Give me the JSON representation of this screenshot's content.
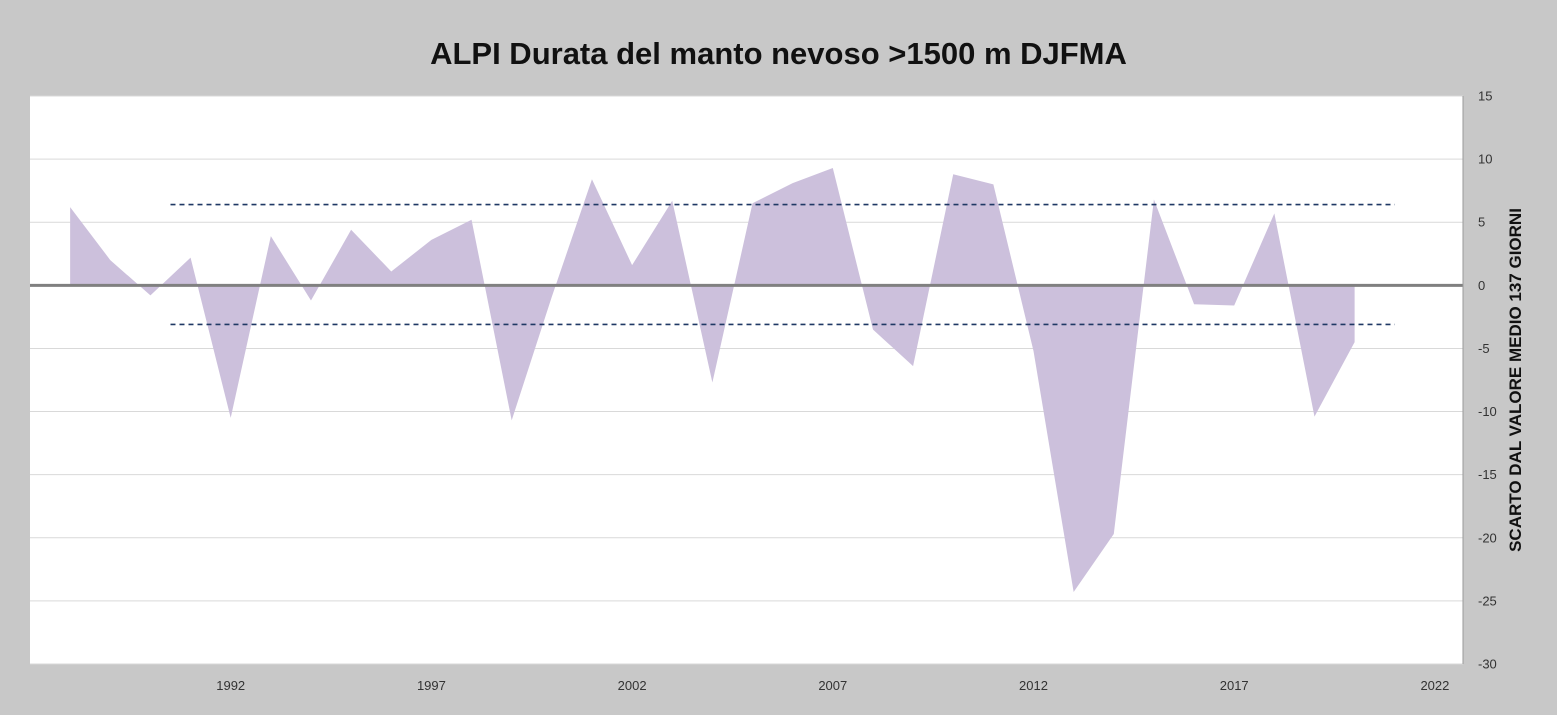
{
  "chart_data": {
    "type": "area",
    "title": "ALPI Durata del manto nevoso >1500 m DJFMA",
    "xlabel": "",
    "ylabel": "SCARTO DAL VALORE MEDIO  137  GIORNI",
    "y_axis_side": "right",
    "ylim": [
      -30,
      15
    ],
    "yticks": [
      15,
      10,
      5,
      0,
      -5,
      -10,
      -15,
      -20,
      -25,
      -30
    ],
    "xlim": [
      1987,
      2022.7
    ],
    "xticks": [
      1992,
      1997,
      2002,
      2007,
      2012,
      2017,
      2022
    ],
    "grid": true,
    "series": [
      {
        "name": "scarto",
        "color": "#ccc0dc",
        "x": [
          1988,
          1989,
          1990,
          1991,
          1992,
          1993,
          1994,
          1995,
          1996,
          1997,
          1998,
          1999,
          2000,
          2001,
          2002,
          2003,
          2004,
          2005,
          2006,
          2007,
          2008,
          2009,
          2010,
          2011,
          2012,
          2013,
          2014,
          2015,
          2016,
          2017,
          2018,
          2019,
          2020,
          2021,
          2022
        ],
        "values": [
          6.2,
          2.0,
          -0.8,
          2.2,
          -10.5,
          3.9,
          -1.2,
          4.4,
          1.1,
          3.6,
          5.2,
          -10.7,
          -0.9,
          8.4,
          1.6,
          6.7,
          -7.7,
          6.5,
          8.1,
          9.3,
          -3.5,
          -6.4,
          8.8,
          8.0,
          -5.2,
          -24.3,
          -19.7,
          6.8,
          -1.5,
          -1.6,
          5.7,
          -10.4,
          -4.5,
          null,
          null
        ]
      }
    ],
    "reference_lines": [
      {
        "name": "upper-threshold",
        "y": 6.4,
        "x_start": 1990.5,
        "x_end": 2021,
        "style": "dashed",
        "color": "#1f3864"
      },
      {
        "name": "lower-threshold",
        "y": -3.1,
        "x_start": 1990.5,
        "x_end": 2021,
        "style": "dashed",
        "color": "#1f3864"
      },
      {
        "name": "zero-line",
        "y": 0,
        "style": "solid",
        "color": "#808080"
      }
    ]
  }
}
